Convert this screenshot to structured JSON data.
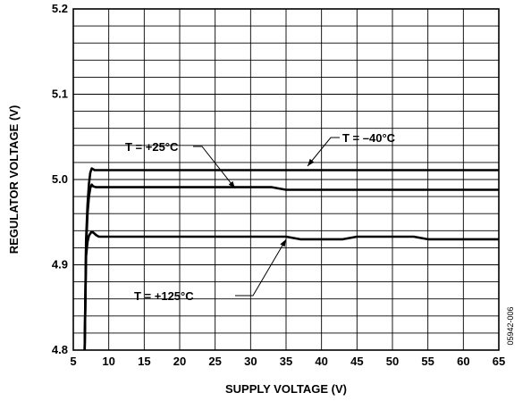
{
  "chart_data": {
    "type": "line",
    "title": "",
    "xlabel": "SUPPLY VOLTAGE (V)",
    "ylabel": "REGULATOR VOLTAGE (V)",
    "xlim": [
      5,
      65
    ],
    "ylim": [
      4.8,
      5.2
    ],
    "x_ticks": [
      5,
      10,
      15,
      20,
      25,
      30,
      35,
      40,
      45,
      50,
      55,
      60,
      65
    ],
    "x_tick_labels": [
      "5",
      "10",
      "15",
      "20",
      "25",
      "30",
      "35",
      "40",
      "45",
      "50",
      "55",
      "60",
      "65"
    ],
    "y_ticks": [
      4.8,
      4.9,
      5.0,
      5.1,
      5.2
    ],
    "y_tick_labels": [
      "4.8",
      "4.9",
      "5.0",
      "5.1",
      "5.2"
    ],
    "grid": true,
    "series": [
      {
        "name": "T = –40°C",
        "x": [
          6.6,
          6.8,
          7.0,
          7.2,
          7.4,
          7.6,
          7.8,
          8.0,
          8.3,
          10,
          20,
          30,
          40,
          50,
          60,
          65
        ],
        "y": [
          4.8,
          4.93,
          4.97,
          4.995,
          5.008,
          5.013,
          5.012,
          5.011,
          5.011,
          5.011,
          5.011,
          5.011,
          5.011,
          5.011,
          5.011,
          5.011
        ]
      },
      {
        "name": "T = +25°C",
        "x": [
          6.6,
          6.8,
          7.0,
          7.2,
          7.4,
          7.6,
          7.8,
          8.2,
          10,
          20,
          30,
          33,
          35,
          40,
          50,
          60,
          65
        ],
        "y": [
          4.8,
          4.92,
          4.96,
          4.98,
          4.99,
          4.994,
          4.992,
          4.991,
          4.991,
          4.991,
          4.991,
          4.991,
          4.988,
          4.988,
          4.988,
          4.988,
          4.988
        ]
      },
      {
        "name": "T = +125°C",
        "x": [
          6.6,
          6.8,
          7.0,
          7.2,
          7.5,
          7.8,
          8.2,
          8.6,
          10,
          20,
          30,
          35,
          37,
          40,
          43,
          45,
          50,
          53,
          55,
          60,
          65
        ],
        "y": [
          4.8,
          4.91,
          4.927,
          4.934,
          4.938,
          4.938,
          4.935,
          4.933,
          4.933,
          4.933,
          4.933,
          4.933,
          4.93,
          4.93,
          4.93,
          4.933,
          4.933,
          4.933,
          4.93,
          4.93,
          4.93
        ]
      }
    ],
    "annotations": [
      {
        "text": "T = –40°C",
        "target_series": 0
      },
      {
        "text": "T = +25°C",
        "target_series": 1
      },
      {
        "text": "T = +125°C",
        "target_series": 2
      }
    ],
    "figure_id": "05942-006"
  }
}
